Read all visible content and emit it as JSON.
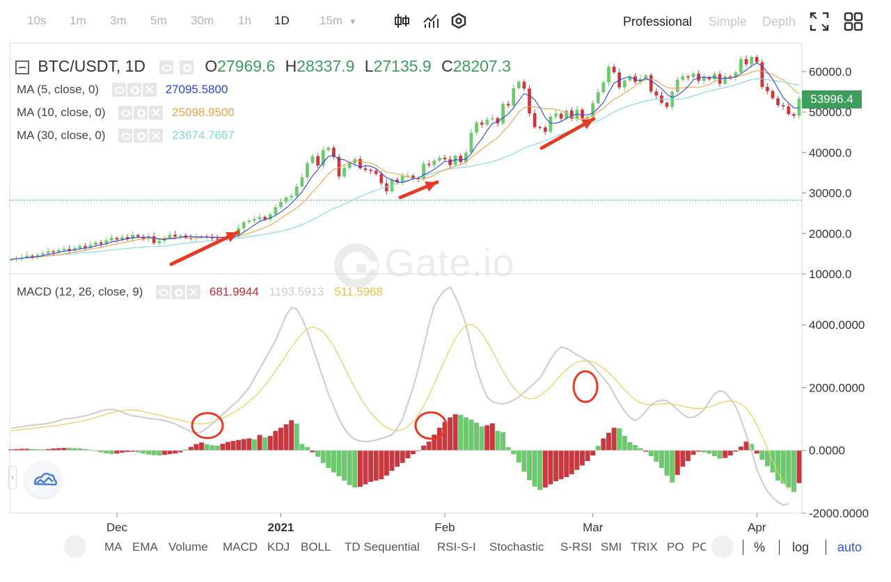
{
  "toolbar": {
    "timeframes": [
      "10s",
      "1m",
      "3m",
      "5m",
      "30m",
      "1h",
      "1D",
      "15m"
    ],
    "active_timeframe": "1D",
    "modes": [
      "Professional",
      "Simple",
      "Depth"
    ],
    "active_mode": "Professional"
  },
  "legend": {
    "pair": "BTC/USDT, 1D",
    "o_label": "O",
    "o_value": "27969.6",
    "h_label": "H",
    "h_value": "28337.9",
    "l_label": "L",
    "l_value": "27135.9",
    "c_label": "C",
    "c_value": "28207.3",
    "ma5_label": "MA (5, close, 0)",
    "ma5_value": "27095.5800",
    "ma10_label": "MA (10, close, 0)",
    "ma10_value": "25098.9500",
    "ma30_label": "MA (30, close, 0)",
    "ma30_value": "23674.7667",
    "macd_label": "MACD (12, 26, close, 9)",
    "macd_value": "681.9944",
    "dif_value": "1193.5913",
    "dea_value": "511.5968"
  },
  "watermark": "Gate.io",
  "price_tag": "53996.4",
  "colors": {
    "up": "#6cc96d",
    "down": "#c9383e",
    "ma5": "#2b45d9",
    "ma10": "#f0a24a",
    "ma30": "#7fd8de",
    "macd": "#b83232",
    "dif": "#cfcfcf",
    "dea": "#e8cf5a",
    "annotation": "#e53a24"
  },
  "chart_data": {
    "type": "candlestick+macd",
    "price_axis": {
      "ticks": [
        10000,
        20000,
        30000,
        40000,
        50000,
        60000
      ],
      "tick_labels": [
        "10000.0",
        "20000.0",
        "30000.0",
        "40000.0",
        "50000.0",
        "60000.0"
      ],
      "range": [
        10000,
        66000
      ]
    },
    "macd_axis": {
      "ticks": [
        -2000,
        0,
        2000,
        4000
      ],
      "tick_labels": [
        "-2000.0000",
        "0.0000",
        "2000.0000",
        "4000.0000"
      ],
      "range": [
        -2000,
        5400
      ]
    },
    "time_axis": [
      "Dec",
      "2021",
      "Feb",
      "Mar",
      "Apr"
    ],
    "time_axis_days": [
      20,
      51,
      82,
      110,
      141
    ],
    "horizontal_line": 28200,
    "closes": [
      13600,
      13900,
      14100,
      14500,
      14300,
      14700,
      15100,
      15600,
      15400,
      15900,
      16200,
      15800,
      16400,
      16900,
      16500,
      17200,
      17800,
      17400,
      18300,
      18900,
      18500,
      19100,
      18700,
      19600,
      19200,
      18700,
      19300,
      17600,
      18200,
      18900,
      19700,
      19200,
      19500,
      19000,
      18900,
      19100,
      19300,
      19200,
      18800,
      18700,
      18900,
      19200,
      19500,
      21300,
      22800,
      23200,
      23600,
      24100,
      23500,
      24700,
      26500,
      27800,
      28900,
      29300,
      31600,
      33900,
      37400,
      39100,
      36800,
      40600,
      41200,
      38900,
      34100,
      36200,
      37300,
      38400,
      36100,
      35700,
      35500,
      34700,
      32400,
      30400,
      33300,
      32700,
      34200,
      34300,
      33600,
      33400,
      37200,
      36900,
      38000,
      38700,
      38300,
      36900,
      39200,
      37600,
      40000,
      44900,
      47400,
      46900,
      48200,
      48500,
      47200,
      52000,
      51600,
      55900,
      57500,
      55800,
      49700,
      46300,
      46200,
      45100,
      48900,
      49600,
      48400,
      50400,
      48400,
      50600,
      48500,
      48800,
      52200,
      54900,
      57300,
      61200,
      59800,
      56100,
      57800,
      58800,
      57500,
      58200,
      59100,
      55100,
      54100,
      52300,
      51300,
      55000,
      58000,
      58800,
      58600,
      59500,
      57700,
      58600,
      58100,
      59400,
      57000,
      58800,
      58500,
      59800,
      63100,
      61800,
      63600,
      62300,
      56200,
      55200,
      53400,
      51700,
      51400,
      49500,
      49100,
      53300
    ],
    "macd_hist": [
      30,
      40,
      50,
      50,
      40,
      35,
      30,
      40,
      60,
      70,
      80,
      75,
      70,
      60,
      40,
      20,
      -20,
      -60,
      -90,
      -110,
      -100,
      -70,
      -50,
      -40,
      -60,
      -100,
      -130,
      -150,
      -160,
      -140,
      -120,
      -100,
      -60,
      30,
      110,
      200,
      250,
      200,
      160,
      150,
      210,
      270,
      300,
      330,
      360,
      380,
      350,
      490,
      410,
      460,
      620,
      720,
      830,
      960,
      850,
      200,
      100,
      -60,
      -200,
      -400,
      -560,
      -700,
      -820,
      -960,
      -1100,
      -1180,
      -1160,
      -1080,
      -1000,
      -960,
      -920,
      -800,
      -650,
      -520,
      -400,
      -250,
      -120,
      -20,
      150,
      280,
      500,
      720,
      900,
      1050,
      1150,
      1130,
      1050,
      980,
      880,
      760,
      800,
      860,
      620,
      580,
      100,
      -120,
      -380,
      -680,
      -950,
      -1150,
      -1260,
      -1180,
      -1080,
      -980,
      -920,
      -850,
      -760,
      -620,
      -480,
      -340,
      -160,
      140,
      380,
      560,
      720,
      700,
      460,
      260,
      170,
      70,
      -40,
      -180,
      -360,
      -560,
      -800,
      -1020,
      -780,
      -520,
      -340,
      -140,
      -40,
      -60,
      -100,
      -180,
      -260,
      -240,
      -160,
      -40,
      120,
      280,
      200,
      -100,
      -300,
      -500,
      -700,
      -960,
      -1060,
      -1180,
      -1320,
      -1040
    ],
    "dif": [
      700,
      730,
      750,
      780,
      800,
      820,
      840,
      860,
      900,
      950,
      1000,
      1020,
      1040,
      1070,
      1100,
      1150,
      1200,
      1260,
      1300,
      1310,
      1280,
      1220,
      1150,
      1100,
      1080,
      1050,
      1020,
      1000,
      980,
      950,
      900,
      850,
      760,
      680,
      600,
      560,
      590,
      700,
      850,
      1000,
      1150,
      1300,
      1450,
      1600,
      1800,
      2000,
      2300,
      2600,
      2900,
      3200,
      3500,
      3900,
      4300,
      4550,
      4500,
      4200,
      3800,
      3300,
      2800,
      2300,
      1800,
      1400,
      1000,
      700,
      480,
      350,
      300,
      280,
      290,
      330,
      380,
      430,
      500,
      700,
      1000,
      1500,
      2000,
      2600,
      3300,
      4000,
      4600,
      4900,
      5100,
      5200,
      4900,
      4500,
      4000,
      3300,
      2600,
      2100,
      1700,
      1550,
      1500,
      1480,
      1520,
      1600,
      1700,
      1850,
      2000,
      2150,
      2300,
      2600,
      2900,
      3150,
      3300,
      3250,
      3150,
      3050,
      2950,
      2850,
      2700,
      2500,
      2300,
      2100,
      1800,
      1500,
      1250,
      1050,
      950,
      1050,
      1250,
      1450,
      1550,
      1600,
      1580,
      1450,
      1300,
      1150,
      1050,
      1050,
      1150,
      1300,
      1550,
      1800,
      1900,
      1850,
      1650,
      1400,
      1000,
      500,
      0,
      -600,
      -1000,
      -1300,
      -1500,
      -1650,
      -1750,
      -1700
    ],
    "dea": [
      620,
      640,
      660,
      680,
      700,
      720,
      740,
      760,
      780,
      800,
      830,
      860,
      890,
      920,
      960,
      1000,
      1050,
      1100,
      1150,
      1200,
      1240,
      1270,
      1290,
      1290,
      1270,
      1240,
      1200,
      1160,
      1120,
      1080,
      1040,
      1000,
      960,
      920,
      880,
      850,
      840,
      860,
      900,
      960,
      1030,
      1110,
      1200,
      1300,
      1420,
      1550,
      1700,
      1880,
      2080,
      2300,
      2530,
      2780,
      3040,
      3290,
      3520,
      3720,
      3870,
      3930,
      3890,
      3780,
      3580,
      3320,
      3000,
      2660,
      2320,
      1990,
      1690,
      1430,
      1200,
      1010,
      850,
      730,
      650,
      620,
      660,
      760,
      920,
      1140,
      1420,
      1750,
      2120,
      2500,
      2880,
      3240,
      3560,
      3820,
      3980,
      4020,
      3920,
      3720,
      3460,
      3160,
      2840,
      2530,
      2240,
      2000,
      1820,
      1700,
      1640,
      1660,
      1740,
      1870,
      2030,
      2210,
      2400,
      2570,
      2710,
      2810,
      2850,
      2850,
      2820,
      2740,
      2620,
      2480,
      2310,
      2120,
      1930,
      1760,
      1620,
      1520,
      1470,
      1450,
      1460,
      1480,
      1490,
      1480,
      1450,
      1410,
      1370,
      1340,
      1330,
      1340,
      1380,
      1440,
      1500,
      1560,
      1580,
      1560,
      1480,
      1340,
      1120,
      820,
      460,
      60,
      -340,
      -700,
      -1000,
      -1260
    ]
  }
}
